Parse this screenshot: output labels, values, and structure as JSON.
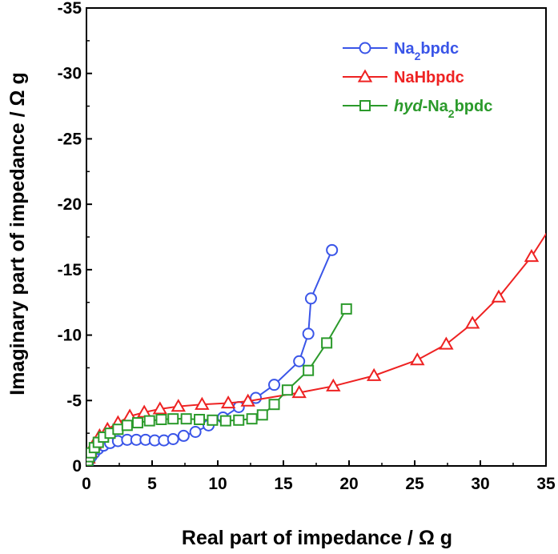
{
  "chart_data": {
    "type": "line",
    "xlabel": "Real part of impedance / Ω  g",
    "ylabel": "Imaginary part of impedance / Ω  g",
    "xlim": [
      0,
      35
    ],
    "ylim": [
      0,
      -35
    ],
    "y_axis_inverted": true,
    "x_ticks": [
      "0",
      "5",
      "10",
      "15",
      "20",
      "25",
      "30",
      "35"
    ],
    "y_ticks": [
      "0",
      "-5",
      "-10",
      "-15",
      "-20",
      "-25",
      "-30",
      "-35"
    ],
    "x_tick_values": [
      0,
      5,
      10,
      15,
      20,
      25,
      30,
      35
    ],
    "y_tick_values": [
      0,
      -5,
      -10,
      -15,
      -20,
      -25,
      -30,
      -35
    ],
    "grid": false,
    "legend_position": "top-right",
    "series": [
      {
        "name": "Na2bpdc",
        "label_parts": [
          {
            "text": "Na"
          },
          {
            "text": "2",
            "sub": true
          },
          {
            "text": "bpdc"
          }
        ],
        "color": "#3a55e8",
        "marker": "circle",
        "x": [
          0.05,
          0.1,
          0.15,
          0.25,
          0.4,
          0.6,
          0.9,
          1.3,
          1.8,
          2.4,
          3.1,
          3.8,
          4.5,
          5.2,
          5.9,
          6.6,
          7.4,
          8.3,
          9.3,
          10.4,
          11.6,
          12.9,
          14.3,
          16.2,
          16.9,
          17.1,
          18.7
        ],
        "y": [
          -0.05,
          -0.15,
          -0.3,
          -0.5,
          -0.75,
          -1.0,
          -1.3,
          -1.55,
          -1.75,
          -1.9,
          -2.0,
          -2.0,
          -2.0,
          -1.95,
          -1.95,
          -2.05,
          -2.3,
          -2.6,
          -3.1,
          -3.7,
          -4.5,
          -5.2,
          -6.2,
          -8.0,
          -10.1,
          -12.8,
          -16.5
        ]
      },
      {
        "name": "NaHbpdc",
        "label_parts": [
          {
            "text": "NaHbpdc"
          }
        ],
        "color": "#ee2222",
        "marker": "triangle",
        "x": [
          0.05,
          0.15,
          0.3,
          0.6,
          1.0,
          1.6,
          2.4,
          3.3,
          4.4,
          5.6,
          7.0,
          8.8,
          10.8,
          12.3,
          16.2,
          18.8,
          21.9,
          25.2,
          27.4,
          29.4,
          31.4,
          33.9,
          35.5
        ],
        "y": [
          -0.2,
          -0.6,
          -1.1,
          -1.7,
          -2.3,
          -2.8,
          -3.3,
          -3.8,
          -4.1,
          -4.35,
          -4.55,
          -4.7,
          -4.8,
          -4.95,
          -5.6,
          -6.1,
          -6.9,
          -8.1,
          -9.3,
          -10.9,
          -12.9,
          -16.0,
          -18.5
        ]
      },
      {
        "name": "hyd-Na2bpdc",
        "label_parts": [
          {
            "text": "hyd",
            "italic": true
          },
          {
            "text": "-Na"
          },
          {
            "text": "2",
            "sub": true
          },
          {
            "text": "bpdc"
          }
        ],
        "color": "#2b9a2b",
        "marker": "square",
        "x": [
          0.05,
          0.1,
          0.2,
          0.35,
          0.6,
          0.9,
          1.3,
          1.8,
          2.4,
          3.1,
          3.9,
          4.8,
          5.7,
          6.6,
          7.6,
          8.6,
          9.6,
          10.6,
          11.6,
          12.6,
          13.4,
          14.3,
          15.3,
          16.9,
          18.3,
          19.8
        ],
        "y": [
          -0.2,
          -0.4,
          -0.7,
          -1.0,
          -1.4,
          -1.8,
          -2.2,
          -2.5,
          -2.8,
          -3.1,
          -3.3,
          -3.45,
          -3.55,
          -3.6,
          -3.6,
          -3.55,
          -3.5,
          -3.45,
          -3.5,
          -3.6,
          -3.9,
          -4.7,
          -5.8,
          -7.3,
          -9.4,
          -12.0
        ]
      }
    ]
  }
}
